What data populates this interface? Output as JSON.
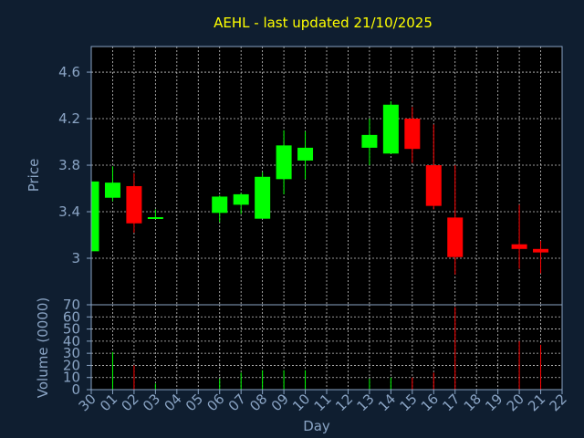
{
  "colors": {
    "up": "#00ff00",
    "down": "#ff0000",
    "background": "#0f1e30",
    "plot_area": "#000000",
    "axis_text": "#8aa4c4",
    "title": "#ffff00"
  },
  "chart_data": {
    "type": "candlestick",
    "title": "AEHL - last updated 21/10/2025",
    "xlabel": "Day",
    "categories": [
      "30",
      "01",
      "02",
      "03",
      "04",
      "05",
      "06",
      "07",
      "08",
      "09",
      "10",
      "11",
      "12",
      "13",
      "14",
      "15",
      "16",
      "17",
      "18",
      "19",
      "20",
      "21",
      "22"
    ],
    "price_panel": {
      "ylabel": "Price",
      "ylim": [
        2.6,
        4.82
      ],
      "yticks": [
        3,
        3.4,
        3.8,
        4.2,
        4.6
      ],
      "ytick_labels": [
        "3",
        "3.4",
        "3.8",
        "4.2",
        "4.6"
      ],
      "candles": [
        {
          "day": "30",
          "open": 3.06,
          "high": 3.66,
          "low": 3.06,
          "close": 3.66
        },
        {
          "day": "01",
          "open": 3.52,
          "high": 3.79,
          "low": 3.49,
          "close": 3.65
        },
        {
          "day": "02",
          "open": 3.62,
          "high": 3.73,
          "low": 3.22,
          "close": 3.3
        },
        {
          "day": "03",
          "open": 3.34,
          "high": 3.42,
          "low": 3.34,
          "close": 3.35
        },
        {
          "day": "06",
          "open": 3.39,
          "high": 3.54,
          "low": 3.31,
          "close": 3.53
        },
        {
          "day": "07",
          "open": 3.46,
          "high": 3.56,
          "low": 3.38,
          "close": 3.55
        },
        {
          "day": "08",
          "open": 3.34,
          "high": 3.74,
          "low": 3.34,
          "close": 3.7
        },
        {
          "day": "09",
          "open": 3.68,
          "high": 4.1,
          "low": 3.55,
          "close": 3.97
        },
        {
          "day": "10",
          "open": 3.84,
          "high": 4.09,
          "low": 3.68,
          "close": 3.95
        },
        {
          "day": "13",
          "open": 3.95,
          "high": 4.2,
          "low": 3.8,
          "close": 4.06
        },
        {
          "day": "14",
          "open": 3.9,
          "high": 4.35,
          "low": 3.9,
          "close": 4.32
        },
        {
          "day": "15",
          "open": 4.2,
          "high": 4.3,
          "low": 3.82,
          "close": 3.94
        },
        {
          "day": "16",
          "open": 3.8,
          "high": 4.15,
          "low": 3.42,
          "close": 3.45
        },
        {
          "day": "17",
          "open": 3.35,
          "high": 3.8,
          "low": 2.86,
          "close": 3.01
        },
        {
          "day": "20",
          "open": 3.12,
          "high": 3.46,
          "low": 2.91,
          "close": 3.08
        },
        {
          "day": "21",
          "open": 3.08,
          "high": 3.15,
          "low": 2.87,
          "close": 3.05
        }
      ]
    },
    "volume_panel": {
      "ylabel": "Volume (0000)",
      "ylim": [
        0,
        70
      ],
      "yticks": [
        0,
        10,
        20,
        30,
        40,
        50,
        60,
        70
      ],
      "ytick_labels": [
        "0",
        "10",
        "20",
        "30",
        "40",
        "50",
        "60",
        "70"
      ],
      "bars": [
        {
          "day": "30",
          "value": 2,
          "direction": "up"
        },
        {
          "day": "01",
          "value": 31,
          "direction": "up"
        },
        {
          "day": "02",
          "value": 20,
          "direction": "down"
        },
        {
          "day": "03",
          "value": 5,
          "direction": "up"
        },
        {
          "day": "06",
          "value": 9,
          "direction": "up"
        },
        {
          "day": "07",
          "value": 14,
          "direction": "up"
        },
        {
          "day": "08",
          "value": 16,
          "direction": "up"
        },
        {
          "day": "09",
          "value": 16,
          "direction": "up"
        },
        {
          "day": "10",
          "value": 16,
          "direction": "up"
        },
        {
          "day": "13",
          "value": 9,
          "direction": "up"
        },
        {
          "day": "14",
          "value": 10,
          "direction": "up"
        },
        {
          "day": "15",
          "value": 10,
          "direction": "down"
        },
        {
          "day": "16",
          "value": 14,
          "direction": "down"
        },
        {
          "day": "17",
          "value": 68,
          "direction": "down"
        },
        {
          "day": "20",
          "value": 40,
          "direction": "down"
        },
        {
          "day": "21",
          "value": 37,
          "direction": "down"
        }
      ]
    }
  }
}
